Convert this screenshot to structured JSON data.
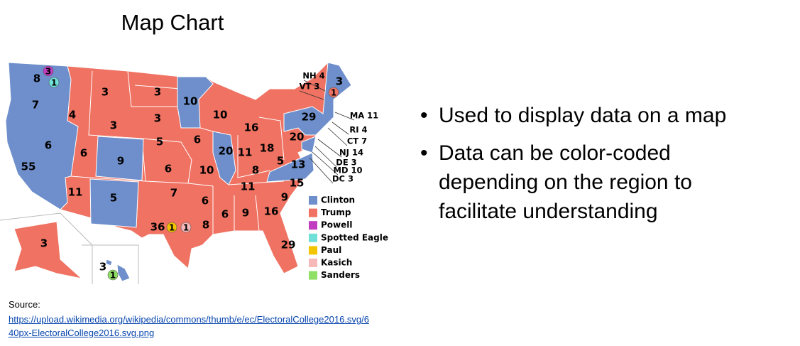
{
  "title": "Map Chart",
  "map": {
    "state_labels": [
      "8",
      "7",
      "55",
      "6",
      "4",
      "3",
      "3",
      "6",
      "11",
      "9",
      "5",
      "3",
      "3",
      "5",
      "6",
      "7",
      "36",
      "10",
      "10",
      "6",
      "20",
      "10",
      "6",
      "8",
      "16",
      "11",
      "18",
      "20",
      "5",
      "8",
      "11",
      "6",
      "9",
      "16",
      "9",
      "15",
      "29",
      "13",
      "29",
      "3",
      "3",
      "3"
    ],
    "badges": [
      {
        "text": "3",
        "color": "#c23cc2"
      },
      {
        "text": "1",
        "color": "#6fe0d8"
      },
      {
        "text": "1",
        "color": "#f2c500"
      },
      {
        "text": "1",
        "color": "#f6b8b8"
      },
      {
        "text": "1",
        "color": "#ef7262"
      },
      {
        "text": "1",
        "color": "#8fe065"
      }
    ],
    "callouts": [
      "NH 4",
      "VT 3",
      "MA 11",
      "RI 4",
      "CT 7",
      "NJ 14",
      "DE 3",
      "MD 10",
      "DC 3"
    ]
  },
  "legend": [
    {
      "name": "Clinton",
      "color": "#6e8fcb"
    },
    {
      "name": "Trump",
      "color": "#ef7262"
    },
    {
      "name": "Powell",
      "color": "#c23cc2"
    },
    {
      "name": "Spotted Eagle",
      "color": "#6fe0d8"
    },
    {
      "name": "Paul",
      "color": "#f2c500"
    },
    {
      "name": "Kasich",
      "color": "#f6b8b8"
    },
    {
      "name": "Sanders",
      "color": "#8fe065"
    }
  ],
  "bullets": [
    "Used to display data on a map",
    "Data can be color-coded depending on the region to facilitate understanding"
  ],
  "source": {
    "label": "Source:",
    "url": "https://upload.wikimedia.org/wikipedia/commons/thumb/e/ec/ElectoralCollege2016.svg/640px-ElectoralCollege2016.svg.png"
  }
}
